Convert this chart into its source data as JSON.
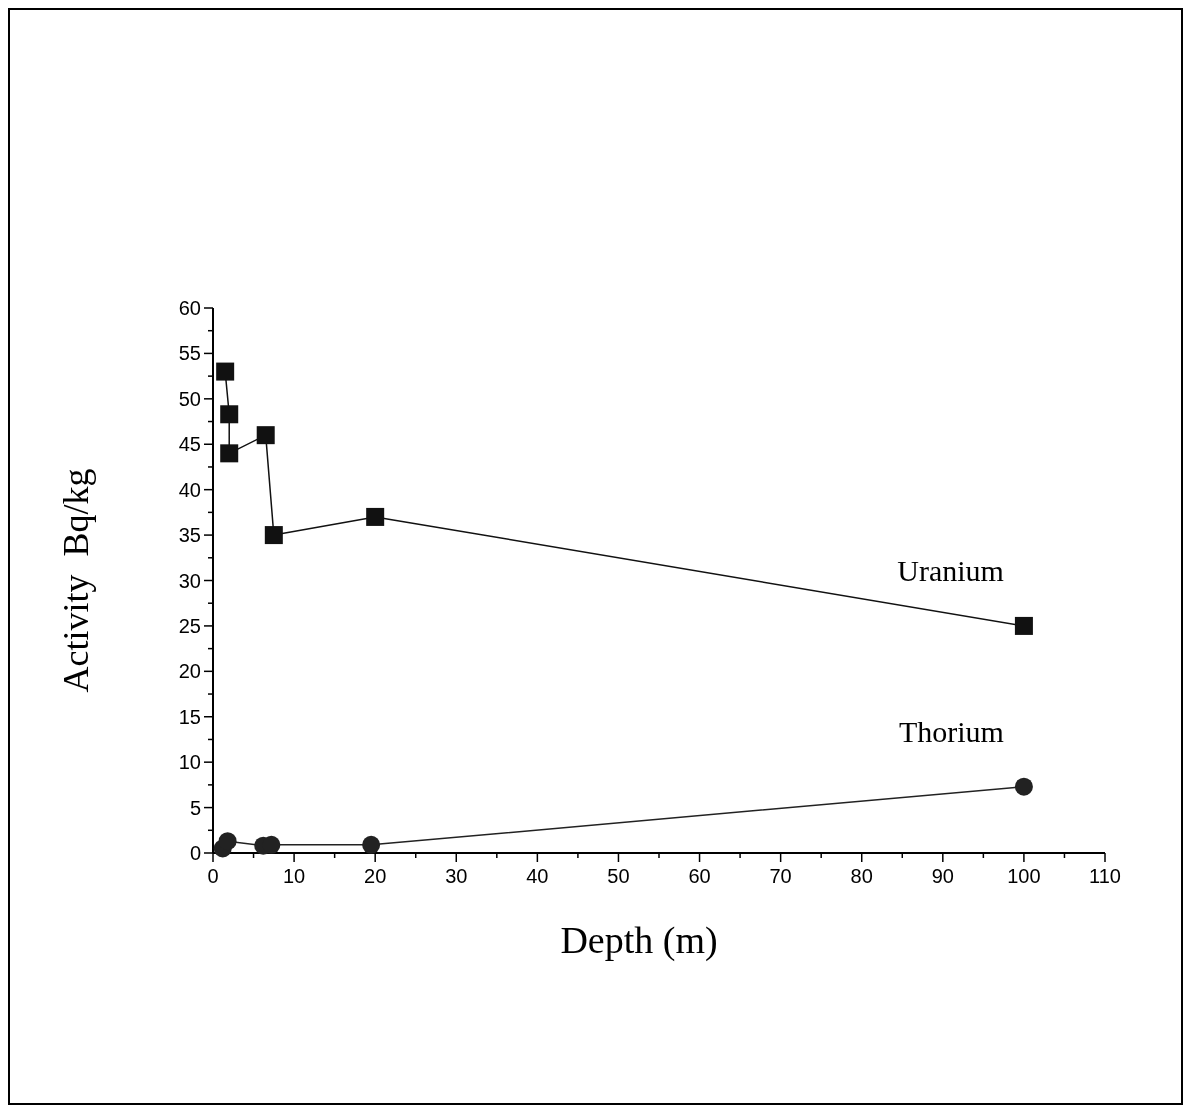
{
  "chart_data": {
    "type": "line",
    "xlabel": "Depth (m)",
    "ylabel": "Activity  Bq/kg",
    "xlim": [
      0,
      110
    ],
    "ylim": [
      0,
      60
    ],
    "xticks": [
      0,
      {
        "value": 5,
        "label": null
      },
      10,
      {
        "value": 15,
        "label": null
      },
      20,
      {
        "value": 25,
        "label": null
      },
      30,
      {
        "value": 35,
        "label": null
      },
      40,
      {
        "value": 45,
        "label": null
      },
      50,
      {
        "value": 55,
        "label": null
      },
      60,
      {
        "value": 65,
        "label": null
      },
      70,
      {
        "value": 75,
        "label": null
      },
      80,
      {
        "value": 85,
        "label": null
      },
      90,
      {
        "value": 95,
        "label": null
      },
      100,
      {
        "value": 105,
        "label": null
      },
      110
    ],
    "yticks": [
      0,
      {
        "value": 2.5,
        "label": null
      },
      5,
      {
        "value": 7.5,
        "label": null
      },
      10,
      {
        "value": 12.5,
        "label": null
      },
      15,
      {
        "value": 17.5,
        "label": null
      },
      20,
      {
        "value": 22.5,
        "label": null
      },
      25,
      {
        "value": 27.5,
        "label": null
      },
      30,
      {
        "value": 32.5,
        "label": null
      },
      35,
      {
        "value": 37.5,
        "label": null
      },
      40,
      {
        "value": 42.5,
        "label": null
      },
      45,
      {
        "value": 47.5,
        "label": null
      },
      50,
      {
        "value": 52.5,
        "label": null
      },
      55,
      {
        "value": 57.5,
        "label": null
      },
      60
    ],
    "series": [
      {
        "name": "Uranium",
        "color": "#111111",
        "marker": "square",
        "x": [
          1.5,
          2,
          2,
          6.5,
          7.5,
          20,
          100
        ],
        "values": [
          53,
          48.3,
          44,
          46,
          35,
          37,
          25
        ]
      },
      {
        "name": "Thorium",
        "color": "#222222",
        "marker": "circle",
        "x": [
          1.2,
          1.8,
          6.2,
          7.2,
          19.5,
          100
        ],
        "values": [
          0.5,
          1.3,
          0.8,
          0.9,
          0.9,
          7.3
        ]
      }
    ]
  }
}
